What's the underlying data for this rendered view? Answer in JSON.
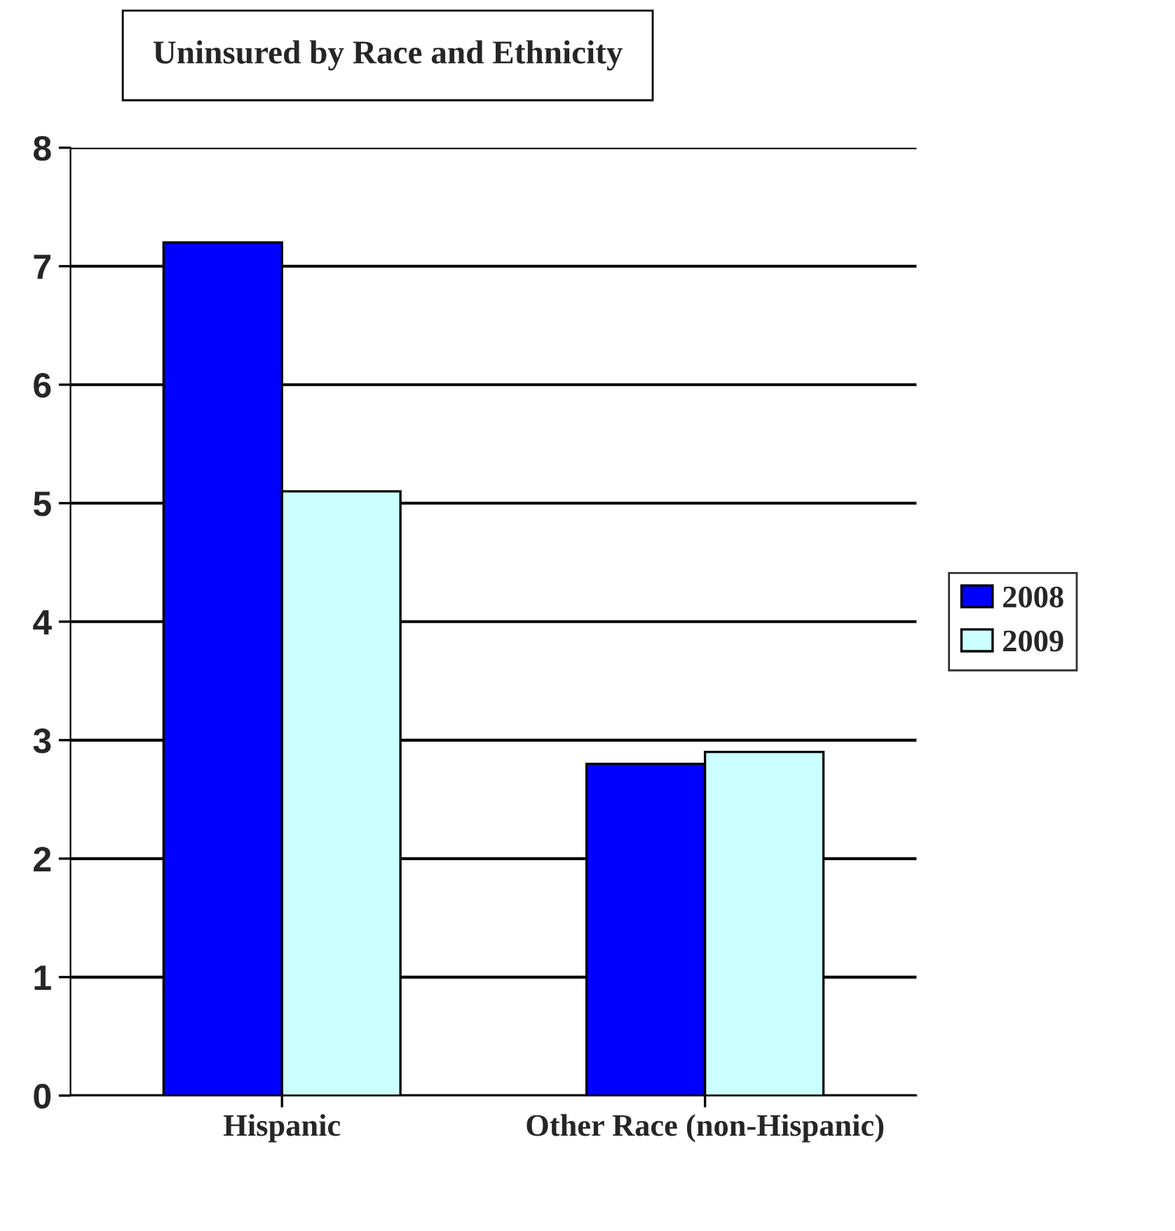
{
  "chart_data": {
    "type": "bar",
    "title": "Uninsured by Race and Ethnicity",
    "categories": [
      "Hispanic",
      "Other Race (non-Hispanic)"
    ],
    "series": [
      {
        "name": "2008",
        "color": "#0000ff",
        "values": [
          7.2,
          2.8
        ]
      },
      {
        "name": "2009",
        "color": "#ccffff",
        "values": [
          5.1,
          2.9
        ]
      }
    ],
    "ylim": [
      0,
      8
    ],
    "yticks": [
      0,
      1,
      2,
      3,
      4,
      5,
      6,
      7,
      8
    ],
    "grid": "y",
    "legend": "right"
  }
}
